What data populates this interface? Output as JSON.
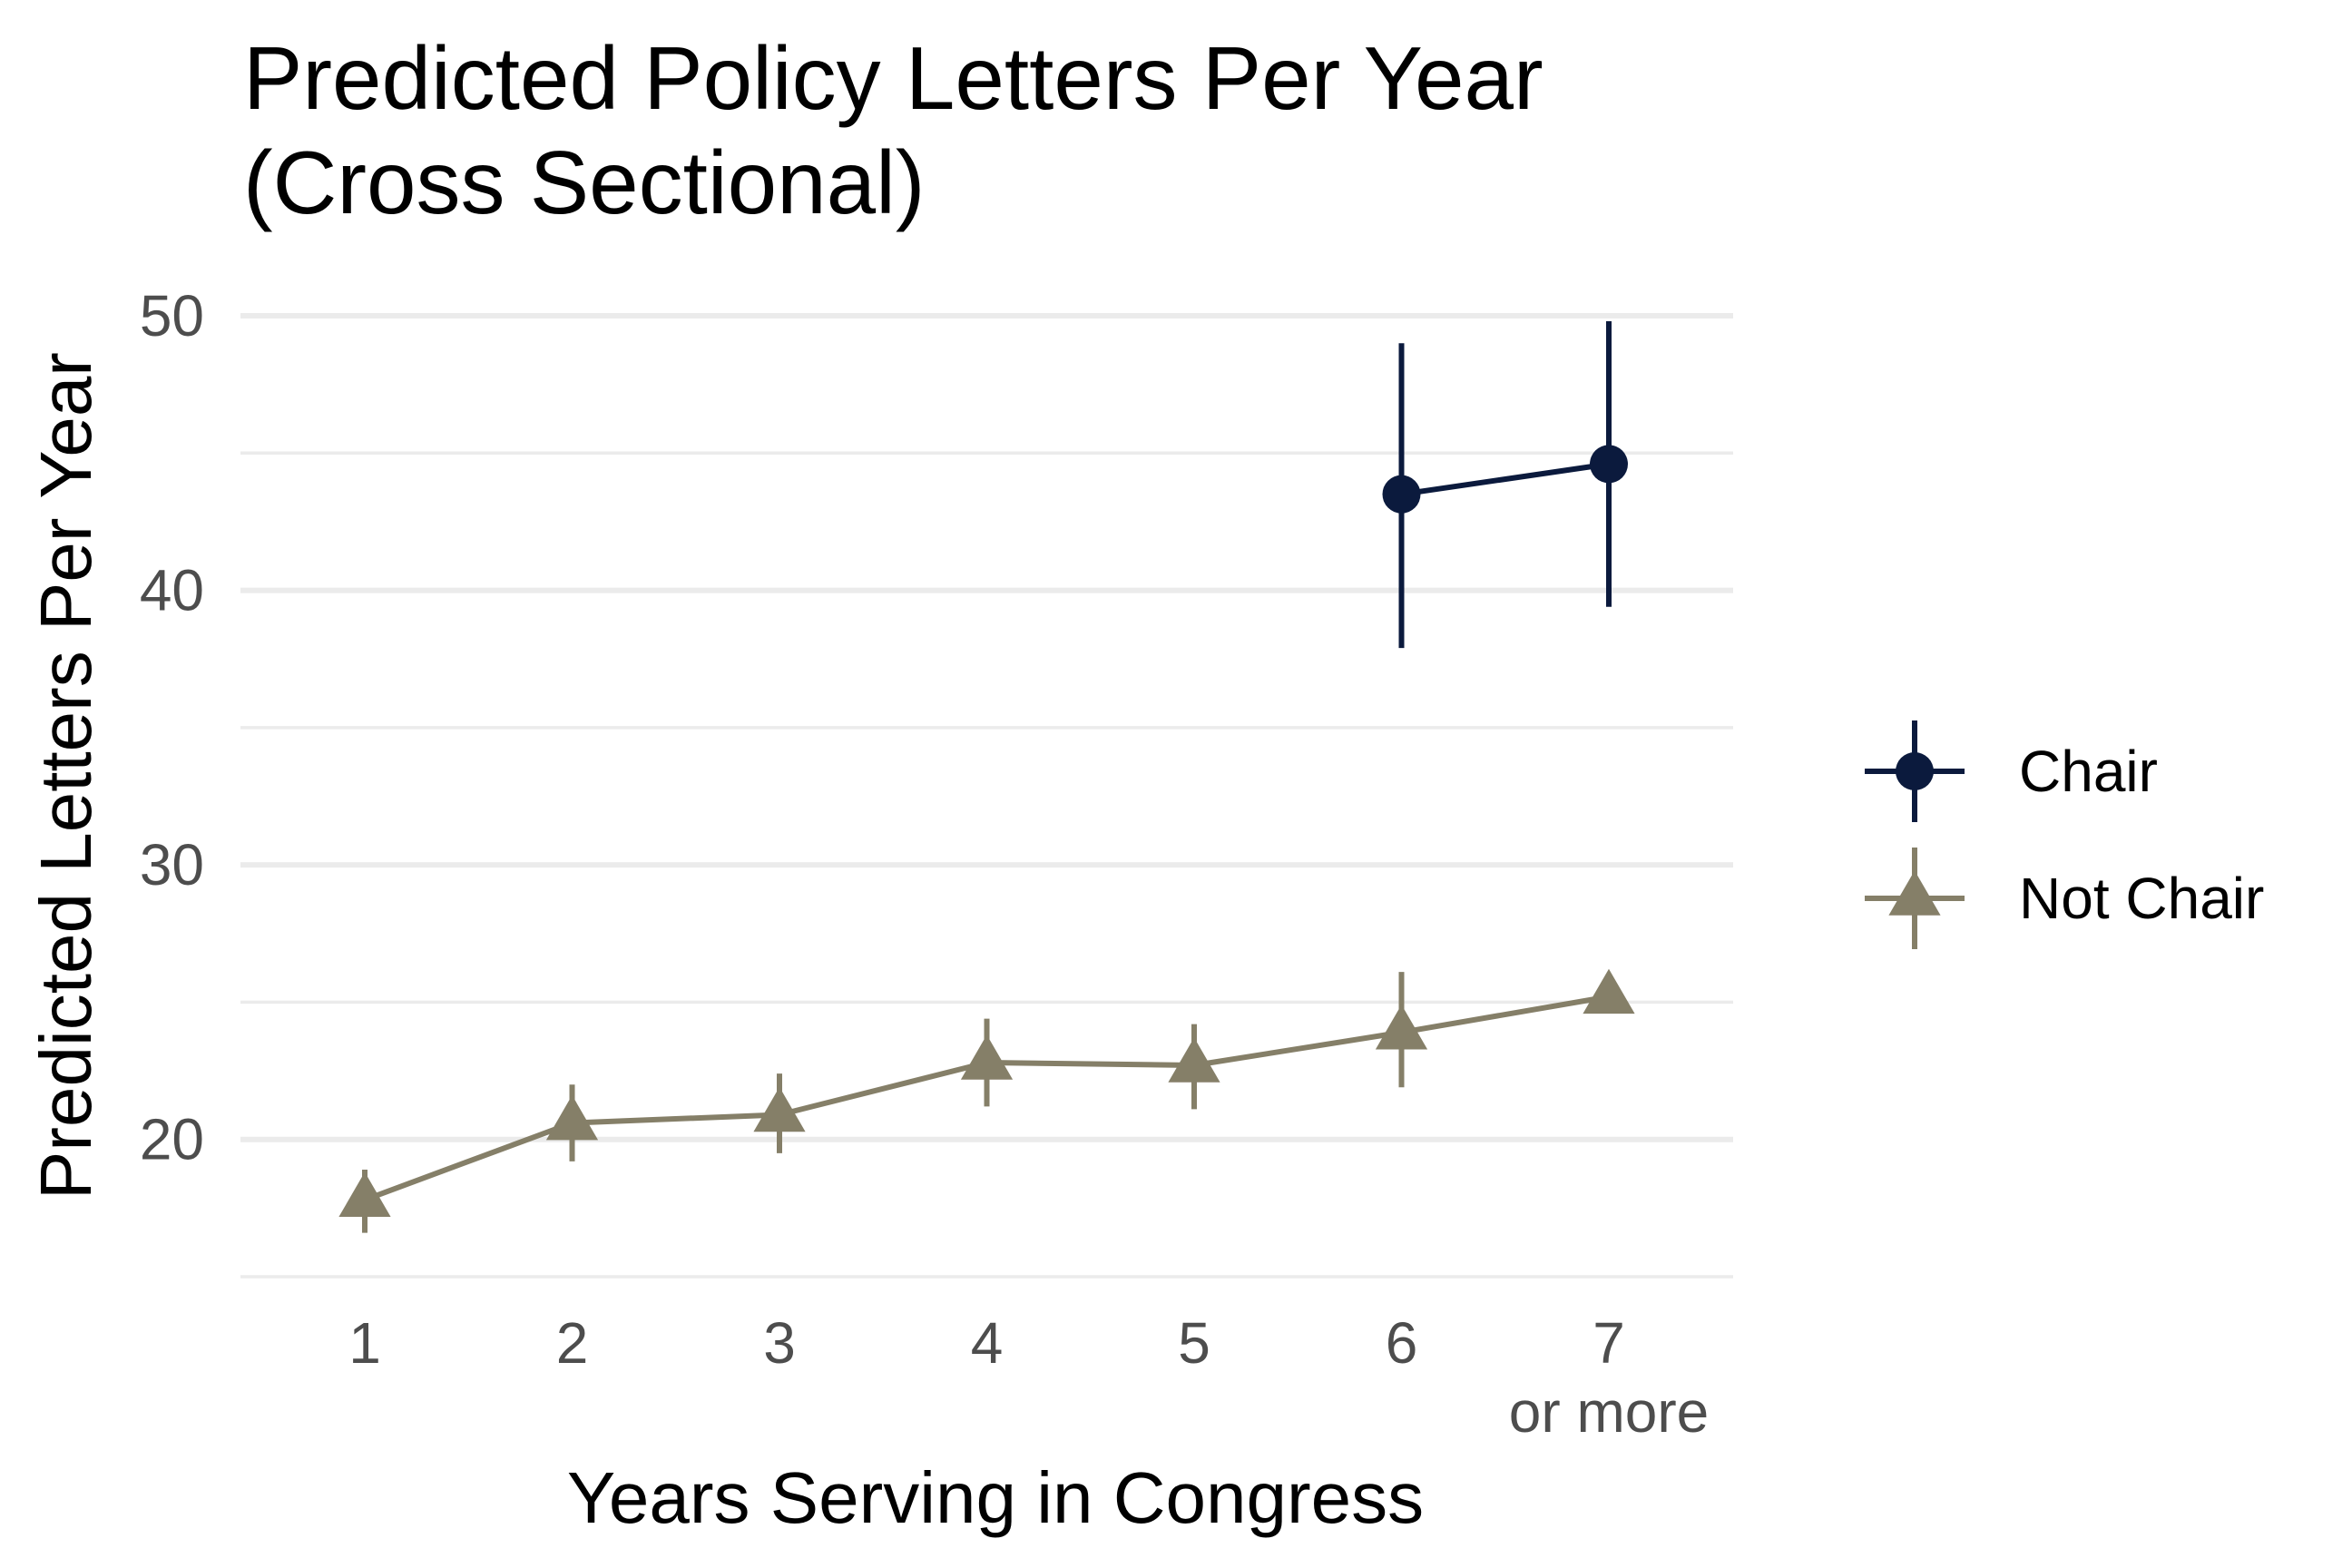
{
  "chart_data": {
    "type": "line",
    "title": [
      "Predicted Policy Letters Per Year",
      "(Cross Sectional)"
    ],
    "xlabel": "Years Serving in Congress",
    "ylabel": "Predicted Letters Per Year",
    "categories": [
      {
        "label": "1",
        "sub": ""
      },
      {
        "label": "2",
        "sub": ""
      },
      {
        "label": "3",
        "sub": ""
      },
      {
        "label": "4",
        "sub": ""
      },
      {
        "label": "5",
        "sub": ""
      },
      {
        "label": "6",
        "sub": ""
      },
      {
        "label": "7",
        "sub": "or more"
      }
    ],
    "ylim": [
      15,
      50
    ],
    "y_ticks": [
      20,
      30,
      40,
      50
    ],
    "y_minor_ticks": [
      15,
      25,
      35,
      45
    ],
    "grid": true,
    "legend_position": "right",
    "series": [
      {
        "name": "Chair",
        "color": "#0b1a3d",
        "marker": "circle",
        "points": [
          {
            "x": 6,
            "y": 43.5,
            "lower": 37.9,
            "upper": 49.0
          },
          {
            "x": 7,
            "y": 44.6,
            "lower": 39.4,
            "upper": 49.8
          }
        ]
      },
      {
        "name": "Not Chair",
        "color": "#857f68",
        "marker": "triangle",
        "points": [
          {
            "x": 1,
            "y": 17.8,
            "lower": 16.6,
            "upper": 18.9
          },
          {
            "x": 2,
            "y": 20.6,
            "lower": 19.2,
            "upper": 22.0
          },
          {
            "x": 3,
            "y": 20.9,
            "lower": 19.5,
            "upper": 22.4
          },
          {
            "x": 4,
            "y": 22.8,
            "lower": 21.2,
            "upper": 24.4
          },
          {
            "x": 5,
            "y": 22.7,
            "lower": 21.1,
            "upper": 24.2
          },
          {
            "x": 6,
            "y": 23.9,
            "lower": 21.9,
            "upper": 26.1
          },
          {
            "x": 7,
            "y": 25.2,
            "lower": 25.2,
            "upper": 25.2
          }
        ]
      }
    ]
  }
}
